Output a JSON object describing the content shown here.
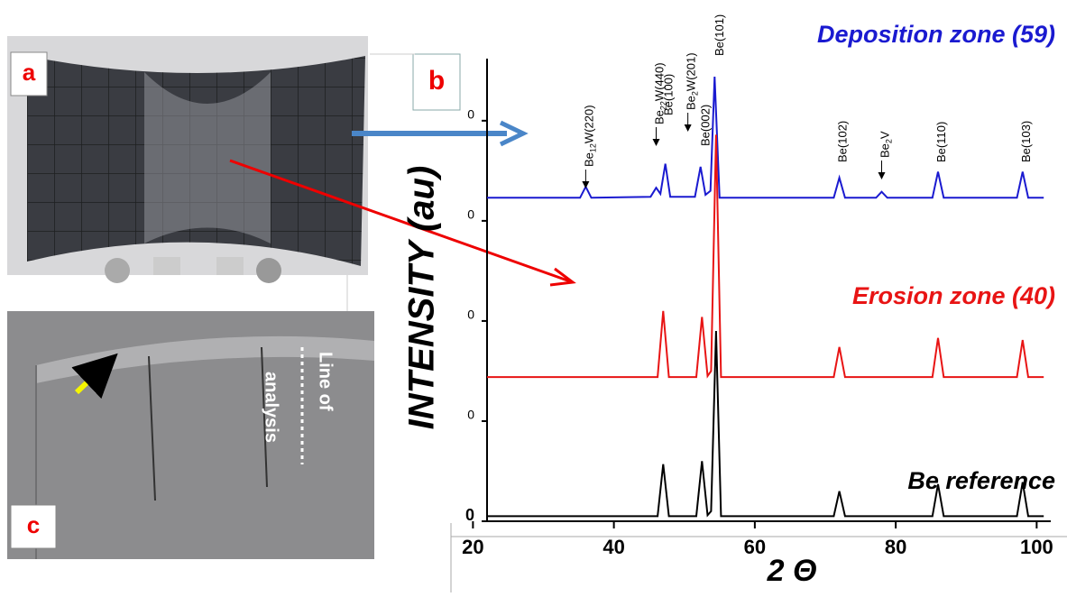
{
  "figure": {
    "panel_labels": [
      "a",
      "b",
      "c"
    ],
    "photo_c_text": [
      "Line of",
      "analysis"
    ]
  },
  "chart_data": {
    "type": "line",
    "ylabel": "INTENSITY (au)",
    "xlabel": "2 Θ",
    "xlim": [
      22,
      102
    ],
    "xticks": [
      20,
      40,
      60,
      80,
      100
    ],
    "ylim": [
      0,
      4.62
    ],
    "yticks": [
      0,
      {
        "value": 1,
        "label": "0"
      },
      {
        "value": 2,
        "label": "0"
      },
      {
        "value": 3,
        "label": "0"
      },
      {
        "value": 4,
        "label": "0"
      }
    ],
    "series": [
      {
        "name": "Deposition zone (59)",
        "color": "#1a1ad0",
        "x": [
          22,
          35.2,
          36,
          36.8,
          45.2,
          46,
          46.6,
          47.3,
          48,
          51.5,
          52.3,
          53,
          53.7,
          54.3,
          55,
          71.2,
          72,
          72.8,
          77.2,
          78,
          78.8,
          85.2,
          86,
          86.8,
          97.2,
          98,
          98.8,
          101
        ],
        "values": [
          3.23,
          3.23,
          3.34,
          3.23,
          3.24,
          3.33,
          3.27,
          3.57,
          3.24,
          3.24,
          3.54,
          3.26,
          3.3,
          4.44,
          3.23,
          3.23,
          3.43,
          3.23,
          3.23,
          3.29,
          3.23,
          3.23,
          3.49,
          3.23,
          3.23,
          3.49,
          3.23,
          3.23
        ]
      },
      {
        "name": "Erosion zone (40)",
        "color": "#e81414",
        "x": [
          22,
          46.2,
          47,
          47.8,
          51.7,
          52.5,
          53.3,
          53.8,
          54.5,
          55.2,
          71.2,
          72,
          72.8,
          85.2,
          86,
          86.8,
          97.2,
          98,
          98.8,
          101
        ],
        "values": [
          1.44,
          1.44,
          2.1,
          1.44,
          1.44,
          2.04,
          1.45,
          1.5,
          3.86,
          1.44,
          1.44,
          1.74,
          1.44,
          1.44,
          1.83,
          1.44,
          1.44,
          1.81,
          1.44,
          1.44
        ]
      },
      {
        "name": "Be reference",
        "color": "#000000",
        "x": [
          22,
          46.2,
          47,
          47.8,
          51.7,
          52.5,
          53.3,
          53.8,
          54.5,
          55.2,
          71.2,
          72,
          72.8,
          85.2,
          86,
          86.8,
          97.2,
          98,
          98.8,
          101
        ],
        "values": [
          0.05,
          0.05,
          0.57,
          0.05,
          0.05,
          0.6,
          0.06,
          0.1,
          1.9,
          0.05,
          0.05,
          0.3,
          0.05,
          0.05,
          0.37,
          0.05,
          0.05,
          0.39,
          0.05,
          0.05
        ]
      }
    ],
    "annotations": [
      {
        "x": 36,
        "parts": [
          "Be",
          "12",
          "W(220)"
        ]
      },
      {
        "x": 46,
        "parts": [
          "Be",
          "22",
          "W(440)"
        ]
      },
      {
        "x": 47.3,
        "parts": [
          "Be(100)"
        ]
      },
      {
        "x": 50.5,
        "parts": [
          "Be",
          "2",
          "W(201)"
        ]
      },
      {
        "x": 52.5,
        "parts": [
          "Be(002)"
        ]
      },
      {
        "x": 54.5,
        "parts": [
          "Be(101)"
        ]
      },
      {
        "x": 72,
        "parts": [
          "Be(102)"
        ]
      },
      {
        "x": 78,
        "parts": [
          "Be",
          "2",
          "V"
        ]
      },
      {
        "x": 86,
        "parts": [
          "Be(110)"
        ]
      },
      {
        "x": 98,
        "parts": [
          "Be(103)"
        ]
      }
    ]
  }
}
